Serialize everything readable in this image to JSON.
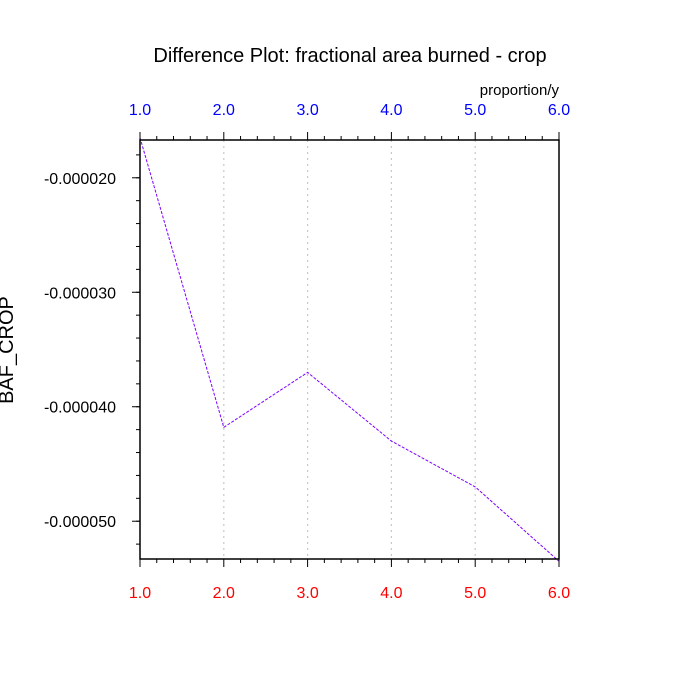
{
  "chart_data": {
    "type": "line",
    "title": "Difference Plot: fractional area burned - crop",
    "units_label": "proportion/y",
    "ylabel": "BAF_CROP",
    "xlabel": "",
    "x": [
      1.0,
      2.0,
      3.0,
      4.0,
      5.0,
      6.0
    ],
    "x_tick_labels": [
      "1.0",
      "2.0",
      "3.0",
      "4.0",
      "5.0",
      "6.0"
    ],
    "series": [
      {
        "values": [
          -1.65e-05,
          -4.18e-05,
          -3.7e-05,
          -4.3e-05,
          -4.7e-05,
          -5.35e-05
        ]
      }
    ],
    "xlim": [
      1.0,
      6.0
    ],
    "ylim": [
      -5.33e-05,
      -1.67e-05
    ],
    "y_ticks": [
      -2e-05,
      -3e-05,
      -4e-05,
      -5e-05
    ],
    "y_tick_labels": [
      "-0.000020",
      "-0.000030",
      "-0.000040",
      "-0.000050"
    ],
    "y_minor_step": 2e-06,
    "x_minor_step": 0.2,
    "grid_x": true,
    "grid_y": false,
    "colors": {
      "top_ticks": "#0000ff",
      "bottom_ticks": "#ff0000",
      "line": "#7f00ff",
      "grid": "#c8c8c8",
      "axis": "#000000"
    }
  }
}
